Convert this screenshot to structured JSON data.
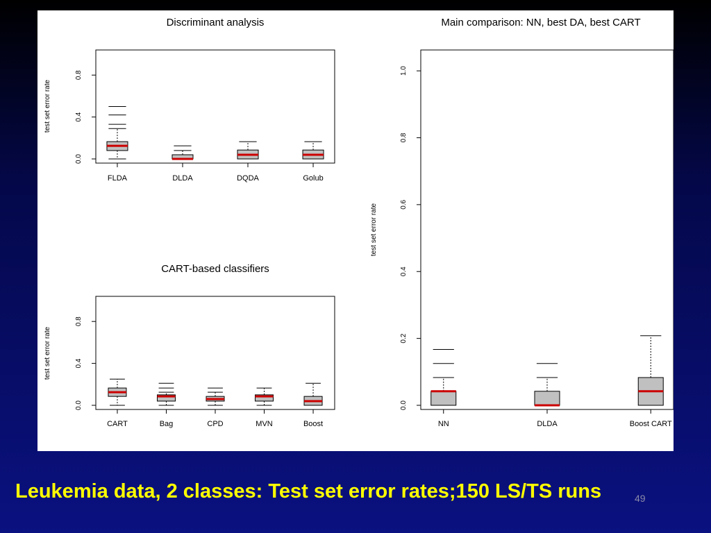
{
  "caption": "Leukemia data, 2 classes: Test set error rates;150 LS/TS runs",
  "slide_number": "49",
  "colors": {
    "median": "#cc0000",
    "box_fill": "#c0c0c0",
    "background_top": "#000000",
    "background_bottom": "#0a1180",
    "caption": "#ffff00"
  },
  "chart_data": [
    {
      "type": "boxplot",
      "title": "Discriminant analysis",
      "ylabel": "test set error rate",
      "ylim": [
        0,
        1
      ],
      "yticks": [
        "0.0",
        "0.4",
        "0.8"
      ],
      "ytick_values": [
        0,
        0.4,
        0.8
      ],
      "categories": [
        "FLDA",
        "DLDA",
        "DQDA",
        "Golub"
      ],
      "boxes": [
        {
          "label": "FLDA",
          "min": 0.0,
          "q1": 0.08,
          "median": 0.125,
          "q3": 0.165,
          "max": 0.29,
          "outliers": [
            0.33,
            0.42,
            0.5
          ]
        },
        {
          "label": "DLDA",
          "min": 0.0,
          "q1": 0.0,
          "median": 0.0,
          "q3": 0.04,
          "max": 0.08,
          "outliers": [
            0.125
          ]
        },
        {
          "label": "DQDA",
          "min": 0.0,
          "q1": 0.0,
          "median": 0.04,
          "q3": 0.085,
          "max": 0.165,
          "outliers": []
        },
        {
          "label": "Golub",
          "min": 0.0,
          "q1": 0.0,
          "median": 0.04,
          "q3": 0.085,
          "max": 0.165,
          "outliers": []
        }
      ]
    },
    {
      "type": "boxplot",
      "title": "CART-based classifiers",
      "ylabel": "test set error rate",
      "ylim": [
        0,
        1
      ],
      "yticks": [
        "0.0",
        "0.4",
        "0.8"
      ],
      "ytick_values": [
        0,
        0.4,
        0.8
      ],
      "categories": [
        "CART",
        "Bag",
        "CPD",
        "MVN",
        "Boost"
      ],
      "boxes": [
        {
          "label": "CART",
          "min": 0.0,
          "q1": 0.085,
          "median": 0.125,
          "q3": 0.165,
          "max": 0.25,
          "outliers": []
        },
        {
          "label": "Bag",
          "min": 0.0,
          "q1": 0.04,
          "median": 0.085,
          "q3": 0.1,
          "max": 0.125,
          "outliers": [
            0.165,
            0.21
          ]
        },
        {
          "label": "CPD",
          "min": 0.0,
          "q1": 0.04,
          "median": 0.06,
          "q3": 0.085,
          "max": 0.125,
          "outliers": [
            0.165
          ]
        },
        {
          "label": "MVN",
          "min": 0.0,
          "q1": 0.04,
          "median": 0.085,
          "q3": 0.1,
          "max": 0.165,
          "outliers": []
        },
        {
          "label": "Boost",
          "min": 0.0,
          "q1": 0.0,
          "median": 0.04,
          "q3": 0.085,
          "max": 0.21,
          "outliers": []
        }
      ]
    },
    {
      "type": "boxplot",
      "title": "Main comparison: NN, best DA, best CART",
      "ylabel": "test set error rate",
      "ylim": [
        0,
        1.05
      ],
      "yticks": [
        "0.0",
        "0.2",
        "0.4",
        "0.6",
        "0.8",
        "1.0"
      ],
      "ytick_values": [
        0,
        0.2,
        0.4,
        0.6,
        0.8,
        1.0
      ],
      "categories": [
        "NN",
        "DLDA",
        "Boost CART"
      ],
      "boxes": [
        {
          "label": "NN",
          "min": 0.0,
          "q1": 0.0,
          "median": 0.042,
          "q3": 0.042,
          "max": 0.083,
          "outliers": [
            0.125,
            0.167
          ]
        },
        {
          "label": "DLDA",
          "min": 0.0,
          "q1": 0.0,
          "median": 0.0,
          "q3": 0.042,
          "max": 0.083,
          "outliers": [
            0.125
          ]
        },
        {
          "label": "Boost CART",
          "min": 0.0,
          "q1": 0.0,
          "median": 0.042,
          "q3": 0.083,
          "max": 0.208,
          "outliers": []
        }
      ]
    }
  ]
}
